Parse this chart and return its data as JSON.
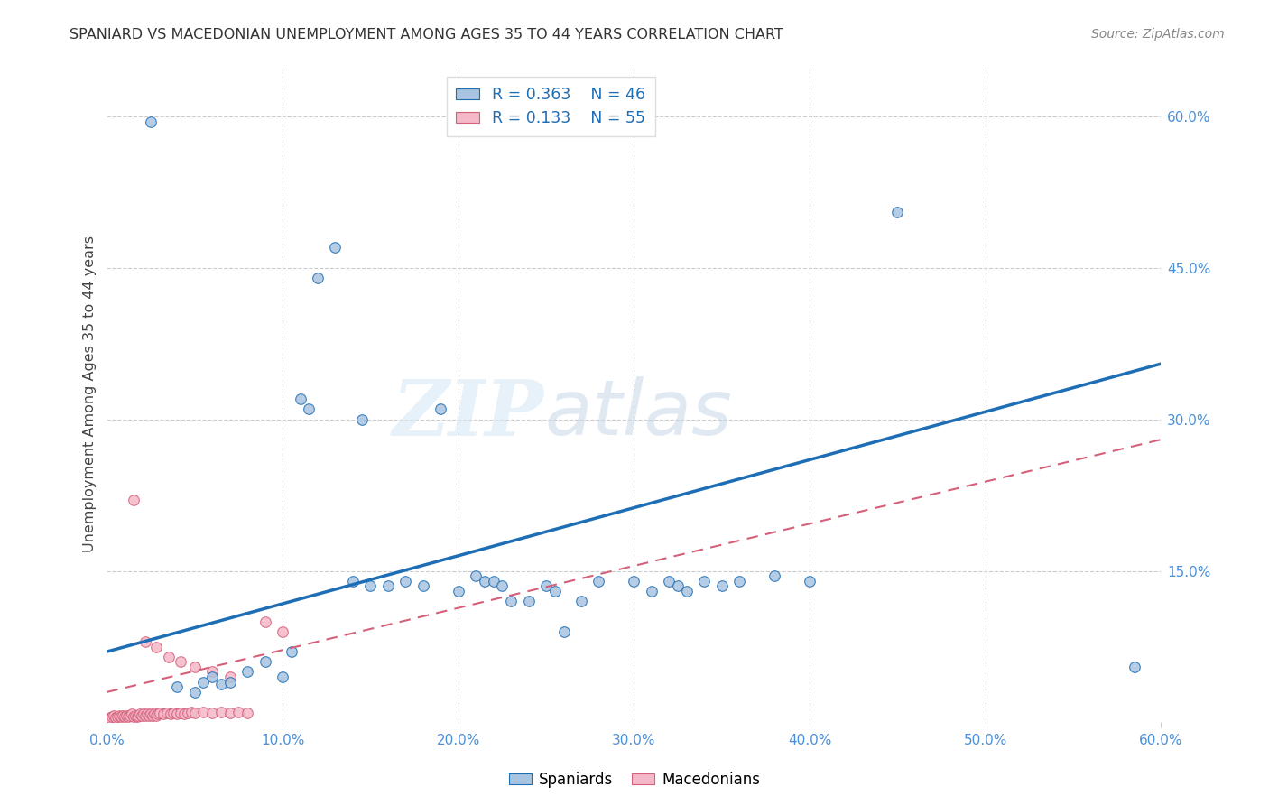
{
  "title": "SPANIARD VS MACEDONIAN UNEMPLOYMENT AMONG AGES 35 TO 44 YEARS CORRELATION CHART",
  "source": "Source: ZipAtlas.com",
  "ylabel": "Unemployment Among Ages 35 to 44 years",
  "xlim": [
    0.0,
    0.6
  ],
  "ylim": [
    0.0,
    0.65
  ],
  "xtick_labels": [
    "0.0%",
    "10.0%",
    "20.0%",
    "30.0%",
    "40.0%",
    "50.0%",
    "60.0%"
  ],
  "xtick_vals": [
    0.0,
    0.1,
    0.2,
    0.3,
    0.4,
    0.5,
    0.6
  ],
  "ytick_labels": [
    "15.0%",
    "30.0%",
    "45.0%",
    "60.0%"
  ],
  "ytick_vals": [
    0.15,
    0.3,
    0.45,
    0.6
  ],
  "spanish_color": "#a8c4e0",
  "spanish_line_color": "#1e6eb5",
  "macedonian_color": "#f5b8c8",
  "macedonian_line_color": "#d4607a",
  "watermark_zip": "ZIP",
  "watermark_atlas": "atlas",
  "blue_line_x0": 0.0,
  "blue_line_y0": 0.07,
  "blue_line_x1": 0.6,
  "blue_line_y1": 0.355,
  "pink_line_x0": 0.0,
  "pink_line_y0": 0.03,
  "pink_line_x1": 0.6,
  "pink_line_y1": 0.28,
  "spaniards_x": [
    0.025,
    0.04,
    0.05,
    0.055,
    0.06,
    0.065,
    0.07,
    0.08,
    0.09,
    0.1,
    0.105,
    0.11,
    0.115,
    0.12,
    0.13,
    0.14,
    0.145,
    0.15,
    0.16,
    0.17,
    0.18,
    0.19,
    0.2,
    0.21,
    0.215,
    0.22,
    0.225,
    0.23,
    0.24,
    0.25,
    0.255,
    0.26,
    0.27,
    0.28,
    0.3,
    0.31,
    0.32,
    0.325,
    0.33,
    0.34,
    0.35,
    0.36,
    0.38,
    0.4,
    0.45,
    0.585
  ],
  "spaniards_y": [
    0.595,
    0.035,
    0.03,
    0.04,
    0.045,
    0.038,
    0.04,
    0.05,
    0.06,
    0.045,
    0.07,
    0.32,
    0.31,
    0.44,
    0.47,
    0.14,
    0.3,
    0.135,
    0.135,
    0.14,
    0.135,
    0.31,
    0.13,
    0.145,
    0.14,
    0.14,
    0.135,
    0.12,
    0.12,
    0.135,
    0.13,
    0.09,
    0.12,
    0.14,
    0.14,
    0.13,
    0.14,
    0.135,
    0.13,
    0.14,
    0.135,
    0.14,
    0.145,
    0.14,
    0.505,
    0.055
  ],
  "macedonians_x": [
    0.002,
    0.003,
    0.004,
    0.005,
    0.006,
    0.007,
    0.008,
    0.009,
    0.01,
    0.011,
    0.012,
    0.013,
    0.014,
    0.015,
    0.016,
    0.017,
    0.018,
    0.019,
    0.02,
    0.021,
    0.022,
    0.023,
    0.024,
    0.025,
    0.026,
    0.027,
    0.028,
    0.029,
    0.03,
    0.032,
    0.034,
    0.036,
    0.038,
    0.04,
    0.042,
    0.044,
    0.046,
    0.048,
    0.05,
    0.055,
    0.06,
    0.065,
    0.07,
    0.075,
    0.08,
    0.09,
    0.1,
    0.015,
    0.022,
    0.028,
    0.035,
    0.042,
    0.05,
    0.06,
    0.07
  ],
  "macedonians_y": [
    0.005,
    0.006,
    0.007,
    0.005,
    0.006,
    0.007,
    0.006,
    0.007,
    0.006,
    0.007,
    0.006,
    0.007,
    0.008,
    0.006,
    0.007,
    0.006,
    0.007,
    0.008,
    0.007,
    0.008,
    0.007,
    0.008,
    0.007,
    0.008,
    0.007,
    0.008,
    0.007,
    0.008,
    0.009,
    0.008,
    0.009,
    0.008,
    0.009,
    0.008,
    0.009,
    0.008,
    0.009,
    0.01,
    0.009,
    0.01,
    0.009,
    0.01,
    0.009,
    0.01,
    0.009,
    0.1,
    0.09,
    0.22,
    0.08,
    0.075,
    0.065,
    0.06,
    0.055,
    0.05,
    0.045
  ]
}
